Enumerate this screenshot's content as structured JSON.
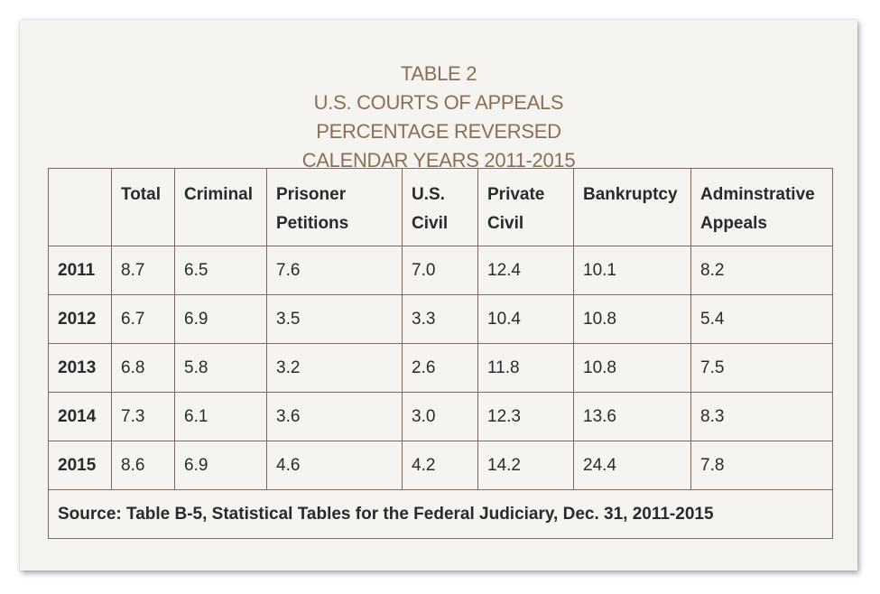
{
  "title": {
    "line1": "TABLE 2",
    "line2": "U.S. COURTS OF APPEALS",
    "line3": "PERCENTAGE REVERSED",
    "line4": "CALENDAR YEARS 2011-2015"
  },
  "columns": [
    "",
    "Total",
    "Criminal",
    "Prisoner Petitions",
    "U.S. Civil",
    "Private Civil",
    "Bankruptcy",
    "Adminstrative Appeals"
  ],
  "rows": [
    {
      "year": "2011",
      "values": [
        "8.7",
        "6.5",
        "7.6",
        "7.0",
        "12.4",
        "10.1",
        "8.2"
      ]
    },
    {
      "year": "2012",
      "values": [
        "6.7",
        "6.9",
        "3.5",
        "3.3",
        "10.4",
        "10.8",
        "5.4"
      ]
    },
    {
      "year": "2013",
      "values": [
        "6.8",
        "5.8",
        "3.2",
        "2.6",
        "11.8",
        "10.8",
        "7.5"
      ]
    },
    {
      "year": "2014",
      "values": [
        "7.3",
        "6.1",
        "3.6",
        "3.0",
        "12.3",
        "13.6",
        "8.3"
      ]
    },
    {
      "year": "2015",
      "values": [
        "8.6",
        "6.9",
        "4.6",
        "4.2",
        "14.2",
        "24.4",
        "7.8"
      ]
    }
  ],
  "source": "Source: Table B-5, Statistical Tables for the Federal Judiciary, Dec. 31, 2011-2015",
  "colors": {
    "title": "#8a6f55",
    "border": "#7a6a5e",
    "card": "#f6f4f0"
  }
}
